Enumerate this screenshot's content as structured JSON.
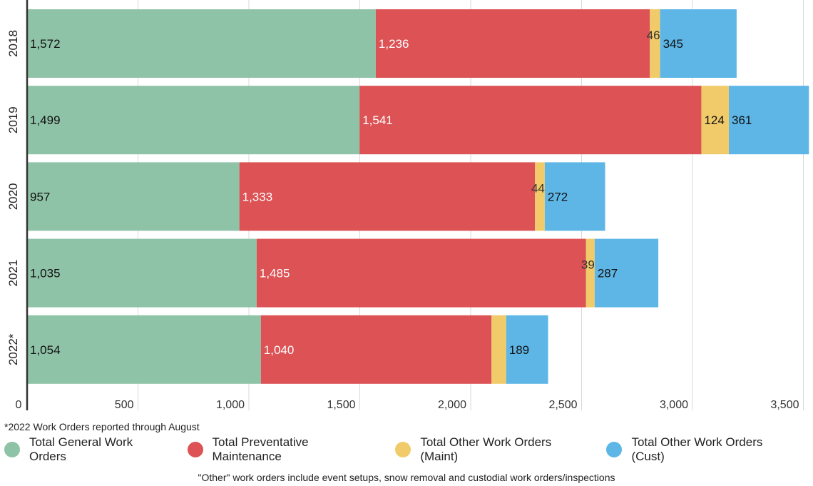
{
  "chart_data": {
    "type": "bar",
    "orientation": "horizontal",
    "stacked": true,
    "categories": [
      "2018",
      "2019",
      "2020",
      "2021",
      "2022*"
    ],
    "series": [
      {
        "name": "Total General Work Orders",
        "color": "#8fc3a7",
        "values": [
          1572,
          1499,
          957,
          1035,
          1054
        ],
        "labels": [
          "1,572",
          "1,499",
          "957",
          "1,035",
          "1,054"
        ]
      },
      {
        "name": "Total Preventative Maintenance",
        "color": "#dc5255",
        "values": [
          1236,
          1541,
          1333,
          1485,
          1040
        ],
        "labels": [
          "1,236",
          "1,541",
          "1,333",
          "1,485",
          "1,040"
        ]
      },
      {
        "name": "Total Other Work Orders (Maint)",
        "color": "#f1cb6a",
        "values": [
          46,
          124,
          44,
          39,
          66
        ],
        "labels": [
          "46",
          "124",
          "44",
          "39",
          ""
        ]
      },
      {
        "name": "Total Other Work Orders (Cust)",
        "color": "#5db6e6",
        "values": [
          345,
          361,
          272,
          287,
          189
        ],
        "labels": [
          "345",
          "361",
          "272",
          "287",
          "189"
        ]
      }
    ],
    "x_ticks": [
      "0",
      "500",
      "1,000",
      "1,500",
      "2,000",
      "2,500",
      "3,000",
      "3,500"
    ],
    "xlim": [
      0,
      3500
    ],
    "grid": true,
    "legend_position": "bottom"
  },
  "note_2022": "*2022 Work Orders reported through August",
  "footnote": "\"Other\" work orders include event setups, snow removal and custodial work orders/inspections"
}
